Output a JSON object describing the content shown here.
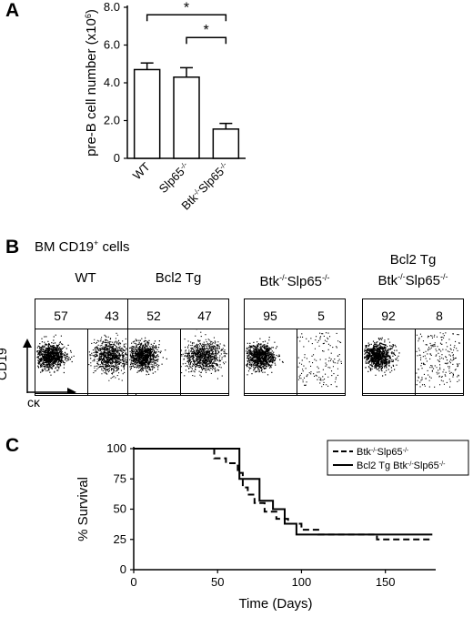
{
  "panels": {
    "a_label": "A",
    "b_label": "B",
    "c_label": "C"
  },
  "chart_data": [
    {
      "type": "bar",
      "categories": [
        "WT",
        "Slp65-/-",
        "Btk-/-Slp65-/-"
      ],
      "category_labels": [
        {
          "base": "WT",
          "parts": []
        },
        {
          "base": "Slp65",
          "parts": [
            {
              "sup": "-/-"
            }
          ]
        },
        {
          "base": "",
          "parts": [
            {
              "text": "Btk"
            },
            {
              "sup": "-/-"
            },
            {
              "text": "Slp65"
            },
            {
              "sup": "-/-"
            }
          ]
        }
      ],
      "values": [
        4.7,
        4.3,
        1.55
      ],
      "errors": [
        0.35,
        0.5,
        0.3
      ],
      "ylabel": "pre-B cell number (x10",
      "ylabel_sup": "6",
      "ylabel_end": ")",
      "ylim": [
        0,
        8
      ],
      "yticks": [
        "0",
        "2.0",
        "4.0",
        "6.0",
        "8.0"
      ],
      "significance": [
        {
          "pair": [
            "WT",
            "Btk-/-Slp65-/-"
          ],
          "mark": "*"
        },
        {
          "pair": [
            "Slp65-/-",
            "Btk-/-Slp65-/-"
          ],
          "mark": "*"
        }
      ],
      "bar_fill": "#ffffff",
      "bar_stroke": "#000000"
    },
    {
      "type": "line",
      "xlabel": "Time (Days)",
      "ylabel": "% Survival",
      "xlim": [
        0,
        180
      ],
      "ylim": [
        0,
        100
      ],
      "xticks": [
        "0",
        "50",
        "100",
        "150"
      ],
      "yticks": [
        "0",
        "25",
        "50",
        "75",
        "100"
      ],
      "legend_position": "top-right",
      "series": [
        {
          "name": "Btk-/-Slp65-/-",
          "style": "dashed",
          "x": [
            0,
            48,
            48,
            55,
            55,
            62,
            62,
            65,
            65,
            68,
            68,
            72,
            72,
            78,
            78,
            85,
            85,
            92,
            92,
            100,
            100,
            110,
            110,
            145,
            145,
            178
          ],
          "y": [
            100,
            100,
            92,
            92,
            88,
            88,
            80,
            80,
            68,
            68,
            62,
            62,
            55,
            55,
            48,
            48,
            42,
            42,
            38,
            38,
            33,
            33,
            29,
            29,
            25,
            25
          ]
        },
        {
          "name": "Bcl2 Tg Btk-/-Slp65-/-",
          "style": "solid",
          "x": [
            0,
            63,
            63,
            75,
            75,
            83,
            83,
            90,
            90,
            97,
            97,
            110,
            110,
            178
          ],
          "y": [
            100,
            100,
            75,
            75,
            57,
            57,
            50,
            50,
            38,
            38,
            29,
            29,
            29,
            29
          ]
        }
      ],
      "legend_labels": [
        {
          "parts": [
            {
              "text": "Btk"
            },
            {
              "sup": "-/-"
            },
            {
              "text": "Slp65"
            },
            {
              "sup": "-/-"
            }
          ]
        },
        {
          "parts": [
            {
              "text": "Bcl2 Tg Btk"
            },
            {
              "sup": "-/-"
            },
            {
              "text": "Slp65"
            },
            {
              "sup": "-/-"
            }
          ]
        }
      ]
    }
  ],
  "facs": {
    "header_parts": [
      {
        "text": "BM CD19"
      },
      {
        "sup": "+"
      },
      {
        "text": " cells"
      }
    ],
    "y_axis": "CD19",
    "x_axis": "cκ",
    "plots": [
      {
        "title_lines": [
          [
            {
              "text": "WT"
            }
          ]
        ],
        "left": "57",
        "right": "43",
        "density": 0.5
      },
      {
        "title_lines": [
          [
            {
              "text": "Bcl2 Tg"
            }
          ]
        ],
        "left": "52",
        "right": "47",
        "density": 0.5
      },
      {
        "title_lines": [
          [
            {
              "text": "Btk"
            },
            {
              "sup": "-/-"
            },
            {
              "text": "Slp65"
            },
            {
              "sup": "-/-"
            }
          ]
        ],
        "left": "95",
        "right": "5",
        "density": 0.08
      },
      {
        "title_lines": [
          [
            {
              "text": "Bcl2 Tg"
            }
          ],
          [
            {
              "text": "Btk"
            },
            {
              "sup": "-/-"
            },
            {
              "text": "Slp65"
            },
            {
              "sup": "-/-"
            }
          ]
        ],
        "left": "92",
        "right": "8",
        "density": 0.12
      }
    ]
  }
}
